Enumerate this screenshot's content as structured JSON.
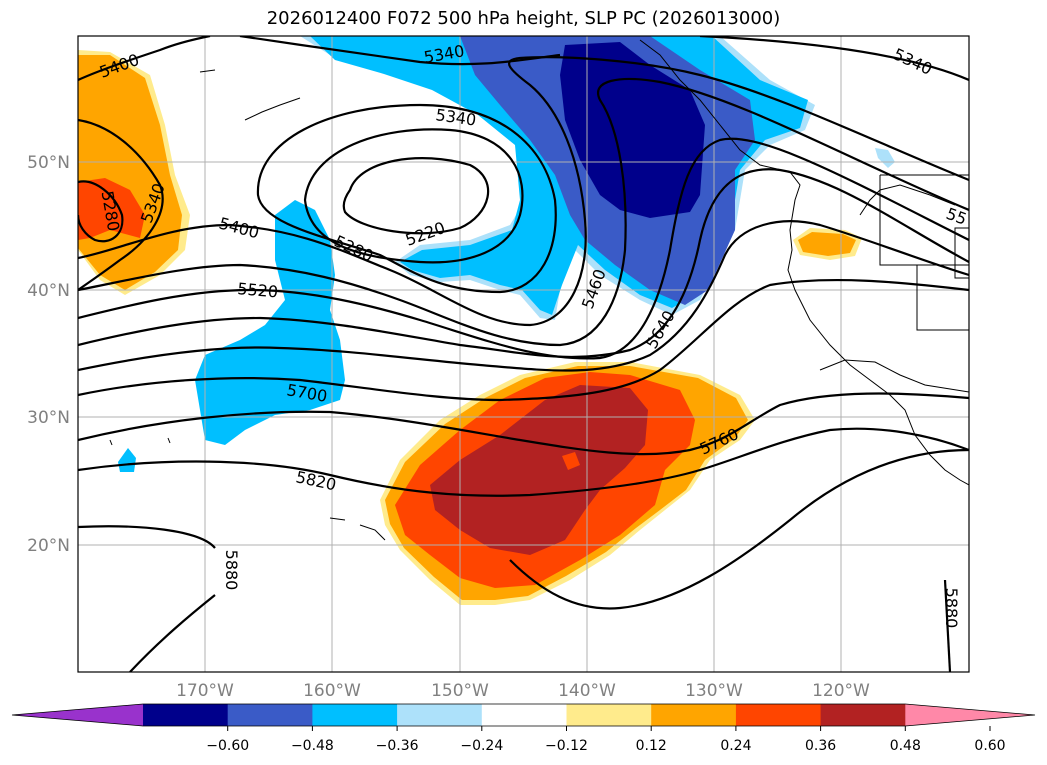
{
  "title": "2026012400 F072 500 hPa height, SLP PC (2026013000)",
  "lat_labels": [
    "50°N",
    "40°N",
    "30°N",
    "20°N"
  ],
  "lon_labels": [
    "170°W",
    "160°W",
    "150°W",
    "140°W",
    "130°W",
    "120°W"
  ],
  "colorbar": {
    "colors": [
      "#9932CC",
      "#00008B",
      "#3A5BC7",
      "#00BFFF",
      "#ADE1FA",
      "#FFFFFF",
      "#FFEB8C",
      "#FFA500",
      "#FF4500",
      "#B22222",
      "#FF88A8"
    ],
    "tick_labels": [
      "−0.60",
      "−0.48",
      "−0.36",
      "−0.24",
      "−0.12",
      "0.12",
      "0.24",
      "0.36",
      "0.48",
      "0.60"
    ]
  },
  "contour_labels": {
    "c5400_nw": "5400",
    "c5280_w": "5280",
    "c5340_w": "5340",
    "c5340_top": "5340",
    "c5340_mid": "5340",
    "c5340_ne": "5340",
    "c55_e": "55",
    "c5220": "5220",
    "c5280_c": "5280",
    "c5400_w": "5400",
    "c5520": "5520",
    "c5460": "5460",
    "c5640": "5640",
    "c5700": "5700",
    "c5760": "5760",
    "c5820": "5820",
    "c5880_w": "5880",
    "c5880_e": "5880"
  }
}
